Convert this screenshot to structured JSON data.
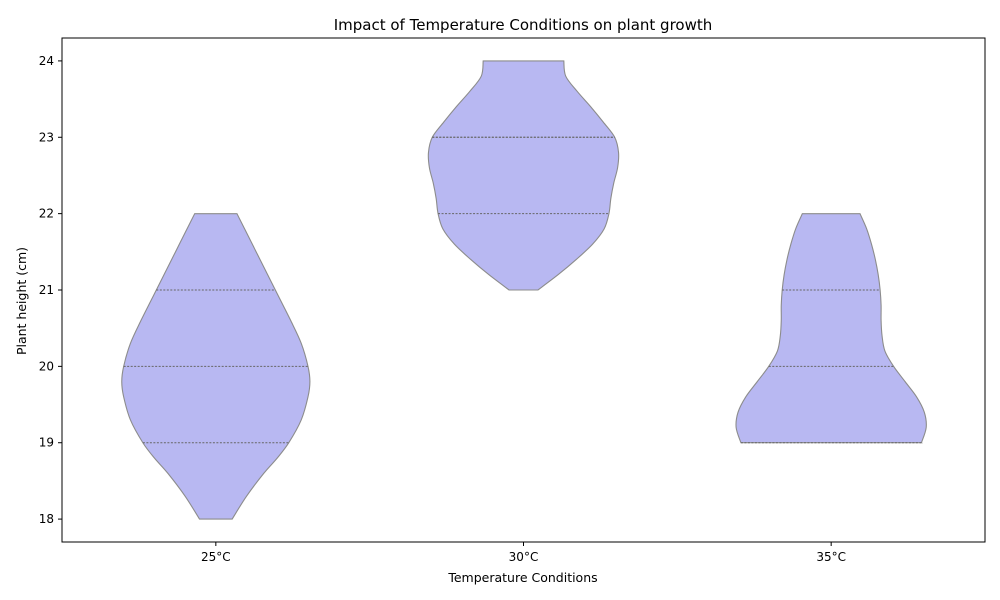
{
  "chart_data": {
    "type": "violin",
    "title": "Impact of Temperature Conditions on plant growth",
    "xlabel": "Temperature Conditions",
    "ylabel": "Plant height (cm)",
    "categories": [
      "25°C",
      "30°C",
      "35°C"
    ],
    "yticks": [
      18,
      19,
      20,
      21,
      22,
      23,
      24
    ],
    "ylim": [
      17.7,
      24.3
    ],
    "grid": false,
    "colors": {
      "fill": "#b8b8f2",
      "edge": "#8c8c8c",
      "quartile": "#666666"
    },
    "violins": [
      {
        "category": "25°C",
        "min": 18,
        "max": 22,
        "quartiles": [
          19,
          20,
          21
        ],
        "profile": [
          [
            18.0,
            0.17
          ],
          [
            18.3,
            0.32
          ],
          [
            18.6,
            0.5
          ],
          [
            18.8,
            0.64
          ],
          [
            19.0,
            0.76
          ],
          [
            19.3,
            0.89
          ],
          [
            19.6,
            0.96
          ],
          [
            19.8,
            0.98
          ],
          [
            20.0,
            0.96
          ],
          [
            20.3,
            0.89
          ],
          [
            20.6,
            0.78
          ],
          [
            20.9,
            0.66
          ],
          [
            21.2,
            0.54
          ],
          [
            21.5,
            0.42
          ],
          [
            21.8,
            0.3
          ],
          [
            22.0,
            0.22
          ]
        ]
      },
      {
        "category": "30°C",
        "min": 21,
        "max": 24,
        "quartiles": [
          22,
          23,
          23
        ],
        "profile": [
          [
            21.0,
            0.15
          ],
          [
            21.2,
            0.36
          ],
          [
            21.4,
            0.55
          ],
          [
            21.6,
            0.72
          ],
          [
            21.8,
            0.84
          ],
          [
            22.0,
            0.89
          ],
          [
            22.2,
            0.91
          ],
          [
            22.4,
            0.94
          ],
          [
            22.6,
            0.98
          ],
          [
            22.8,
            0.99
          ],
          [
            23.0,
            0.95
          ],
          [
            23.2,
            0.83
          ],
          [
            23.4,
            0.7
          ],
          [
            23.6,
            0.56
          ],
          [
            23.8,
            0.44
          ],
          [
            24.0,
            0.42
          ]
        ]
      },
      {
        "category": "35°C",
        "min": 19,
        "max": 22,
        "quartiles": [
          19,
          20,
          21
        ],
        "profile": [
          [
            19.0,
            0.94
          ],
          [
            19.2,
            0.99
          ],
          [
            19.4,
            0.97
          ],
          [
            19.6,
            0.89
          ],
          [
            19.8,
            0.77
          ],
          [
            20.0,
            0.65
          ],
          [
            20.2,
            0.56
          ],
          [
            20.4,
            0.53
          ],
          [
            20.6,
            0.52
          ],
          [
            20.8,
            0.52
          ],
          [
            21.0,
            0.51
          ],
          [
            21.2,
            0.49
          ],
          [
            21.4,
            0.46
          ],
          [
            21.6,
            0.42
          ],
          [
            21.8,
            0.37
          ],
          [
            22.0,
            0.3
          ]
        ]
      }
    ]
  }
}
